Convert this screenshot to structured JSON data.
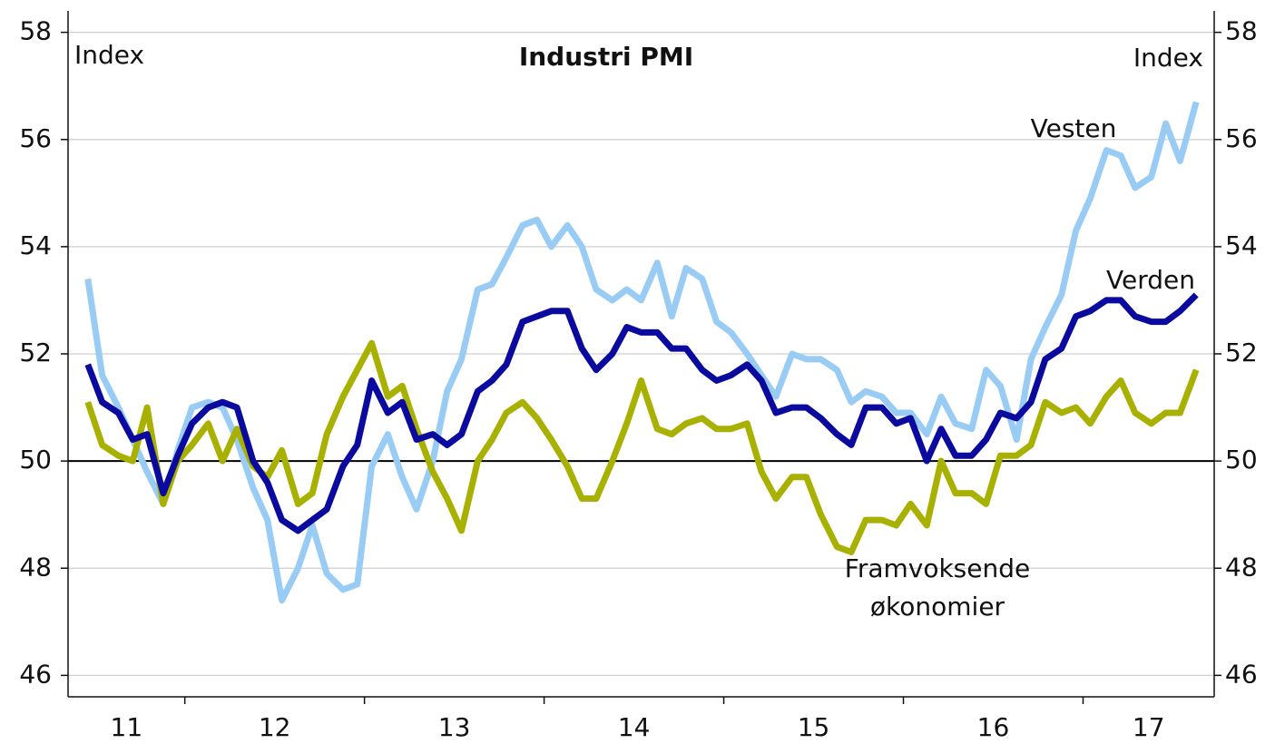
{
  "chart_data": {
    "type": "line",
    "title": "Industri PMI",
    "annotations": [
      "Index",
      "Index"
    ],
    "x": [
      2011.46,
      2011.54,
      2011.63,
      2011.71,
      2011.79,
      2011.88,
      2011.96,
      2012.04,
      2012.13,
      2012.21,
      2012.29,
      2012.38,
      2012.46,
      2012.54,
      2012.63,
      2012.71,
      2012.79,
      2012.88,
      2012.96,
      2013.04,
      2013.13,
      2013.21,
      2013.29,
      2013.38,
      2013.46,
      2013.54,
      2013.63,
      2013.71,
      2013.79,
      2013.88,
      2013.96,
      2014.04,
      2014.13,
      2014.21,
      2014.29,
      2014.38,
      2014.46,
      2014.54,
      2014.63,
      2014.71,
      2014.79,
      2014.88,
      2014.96,
      2015.04,
      2015.13,
      2015.21,
      2015.29,
      2015.38,
      2015.46,
      2015.54,
      2015.63,
      2015.71,
      2015.79,
      2015.88,
      2015.96,
      2016.04,
      2016.13,
      2016.21,
      2016.29,
      2016.38,
      2016.46,
      2016.54,
      2016.63,
      2016.71,
      2016.79,
      2016.88,
      2016.96,
      2017.04,
      2017.13,
      2017.21,
      2017.29,
      2017.38,
      2017.46,
      2017.54,
      2017.63
    ],
    "series": [
      {
        "name": "Vesten",
        "color": "#99ccf5",
        "values": [
          53.4,
          51.6,
          51.0,
          50.4,
          49.8,
          49.2,
          50.2,
          51.0,
          51.1,
          51.0,
          50.4,
          49.5,
          48.9,
          47.4,
          48.0,
          48.8,
          47.9,
          47.6,
          47.7,
          49.9,
          50.5,
          49.7,
          49.1,
          50.0,
          51.3,
          51.9,
          53.2,
          53.3,
          53.8,
          54.4,
          54.5,
          54.0,
          54.4,
          54.0,
          53.2,
          53.0,
          53.2,
          53.0,
          53.7,
          52.7,
          53.6,
          53.4,
          52.6,
          52.4,
          52.0,
          51.6,
          51.2,
          52.0,
          51.9,
          51.9,
          51.7,
          51.1,
          51.3,
          51.2,
          50.9,
          50.9,
          50.5,
          51.2,
          50.7,
          50.6,
          51.7,
          51.4,
          50.4,
          51.9,
          52.5,
          53.1,
          54.3,
          54.9,
          55.8,
          55.7,
          55.1,
          55.3,
          56.3,
          55.6,
          56.7
        ]
      },
      {
        "name": "Framvoksende økonomier",
        "color": "#a8b000",
        "values": [
          51.1,
          50.3,
          50.1,
          50.0,
          51.0,
          49.2,
          50.0,
          50.3,
          50.7,
          50.0,
          50.6,
          49.9,
          49.7,
          50.2,
          49.2,
          49.4,
          50.5,
          51.2,
          51.7,
          52.2,
          51.2,
          51.4,
          50.6,
          49.8,
          49.3,
          48.7,
          50.0,
          50.4,
          50.9,
          51.1,
          50.8,
          50.4,
          49.9,
          49.3,
          49.3,
          50.0,
          50.7,
          51.5,
          50.6,
          50.5,
          50.7,
          50.8,
          50.6,
          50.6,
          50.7,
          49.8,
          49.3,
          49.7,
          49.7,
          49.0,
          48.4,
          48.3,
          48.9,
          48.9,
          48.8,
          49.2,
          48.8,
          50.0,
          49.4,
          49.4,
          49.2,
          50.1,
          50.1,
          50.3,
          51.1,
          50.9,
          51.0,
          50.7,
          51.2,
          51.5,
          50.9,
          50.7,
          50.9,
          50.9,
          51.7
        ]
      },
      {
        "name": "Verden",
        "color": "#0a0a9e",
        "values": [
          51.8,
          51.1,
          50.9,
          50.4,
          50.5,
          49.4,
          50.1,
          50.7,
          51.0,
          51.1,
          51.0,
          50.0,
          49.6,
          48.9,
          48.7,
          48.9,
          49.1,
          49.9,
          50.3,
          51.5,
          50.9,
          51.1,
          50.4,
          50.5,
          50.3,
          50.5,
          51.3,
          51.5,
          51.8,
          52.6,
          52.7,
          52.8,
          52.8,
          52.1,
          51.7,
          52.0,
          52.5,
          52.4,
          52.4,
          52.1,
          52.1,
          51.7,
          51.5,
          51.6,
          51.8,
          51.5,
          50.9,
          51.0,
          51.0,
          50.8,
          50.5,
          50.3,
          51.0,
          51.0,
          50.7,
          50.8,
          50.0,
          50.6,
          50.1,
          50.1,
          50.4,
          50.9,
          50.8,
          51.1,
          51.9,
          52.1,
          52.7,
          52.8,
          53.0,
          53.0,
          52.7,
          52.6,
          52.6,
          52.8,
          53.1
        ]
      }
    ],
    "xlim": [
      2011.35,
      2017.73
    ],
    "xticks": [
      2012,
      2013,
      2014,
      2015,
      2016,
      2017
    ],
    "xtick_labels": [
      {
        "value": 2011,
        "label": "11"
      },
      {
        "value": 2012,
        "label": "12"
      },
      {
        "value": 2013,
        "label": "13"
      },
      {
        "value": 2014,
        "label": "14"
      },
      {
        "value": 2015,
        "label": "15"
      },
      {
        "value": 2016,
        "label": "16"
      },
      {
        "value": 2017,
        "label": "17"
      }
    ],
    "ylim": [
      45.6,
      58.4
    ],
    "yticks": [
      46,
      48,
      50,
      52,
      54,
      56,
      58
    ],
    "y2lim": [
      45.6,
      58.4
    ],
    "y2ticks": [
      46,
      48,
      50,
      52,
      54,
      56,
      58
    ],
    "hline": 50,
    "grid": true
  }
}
